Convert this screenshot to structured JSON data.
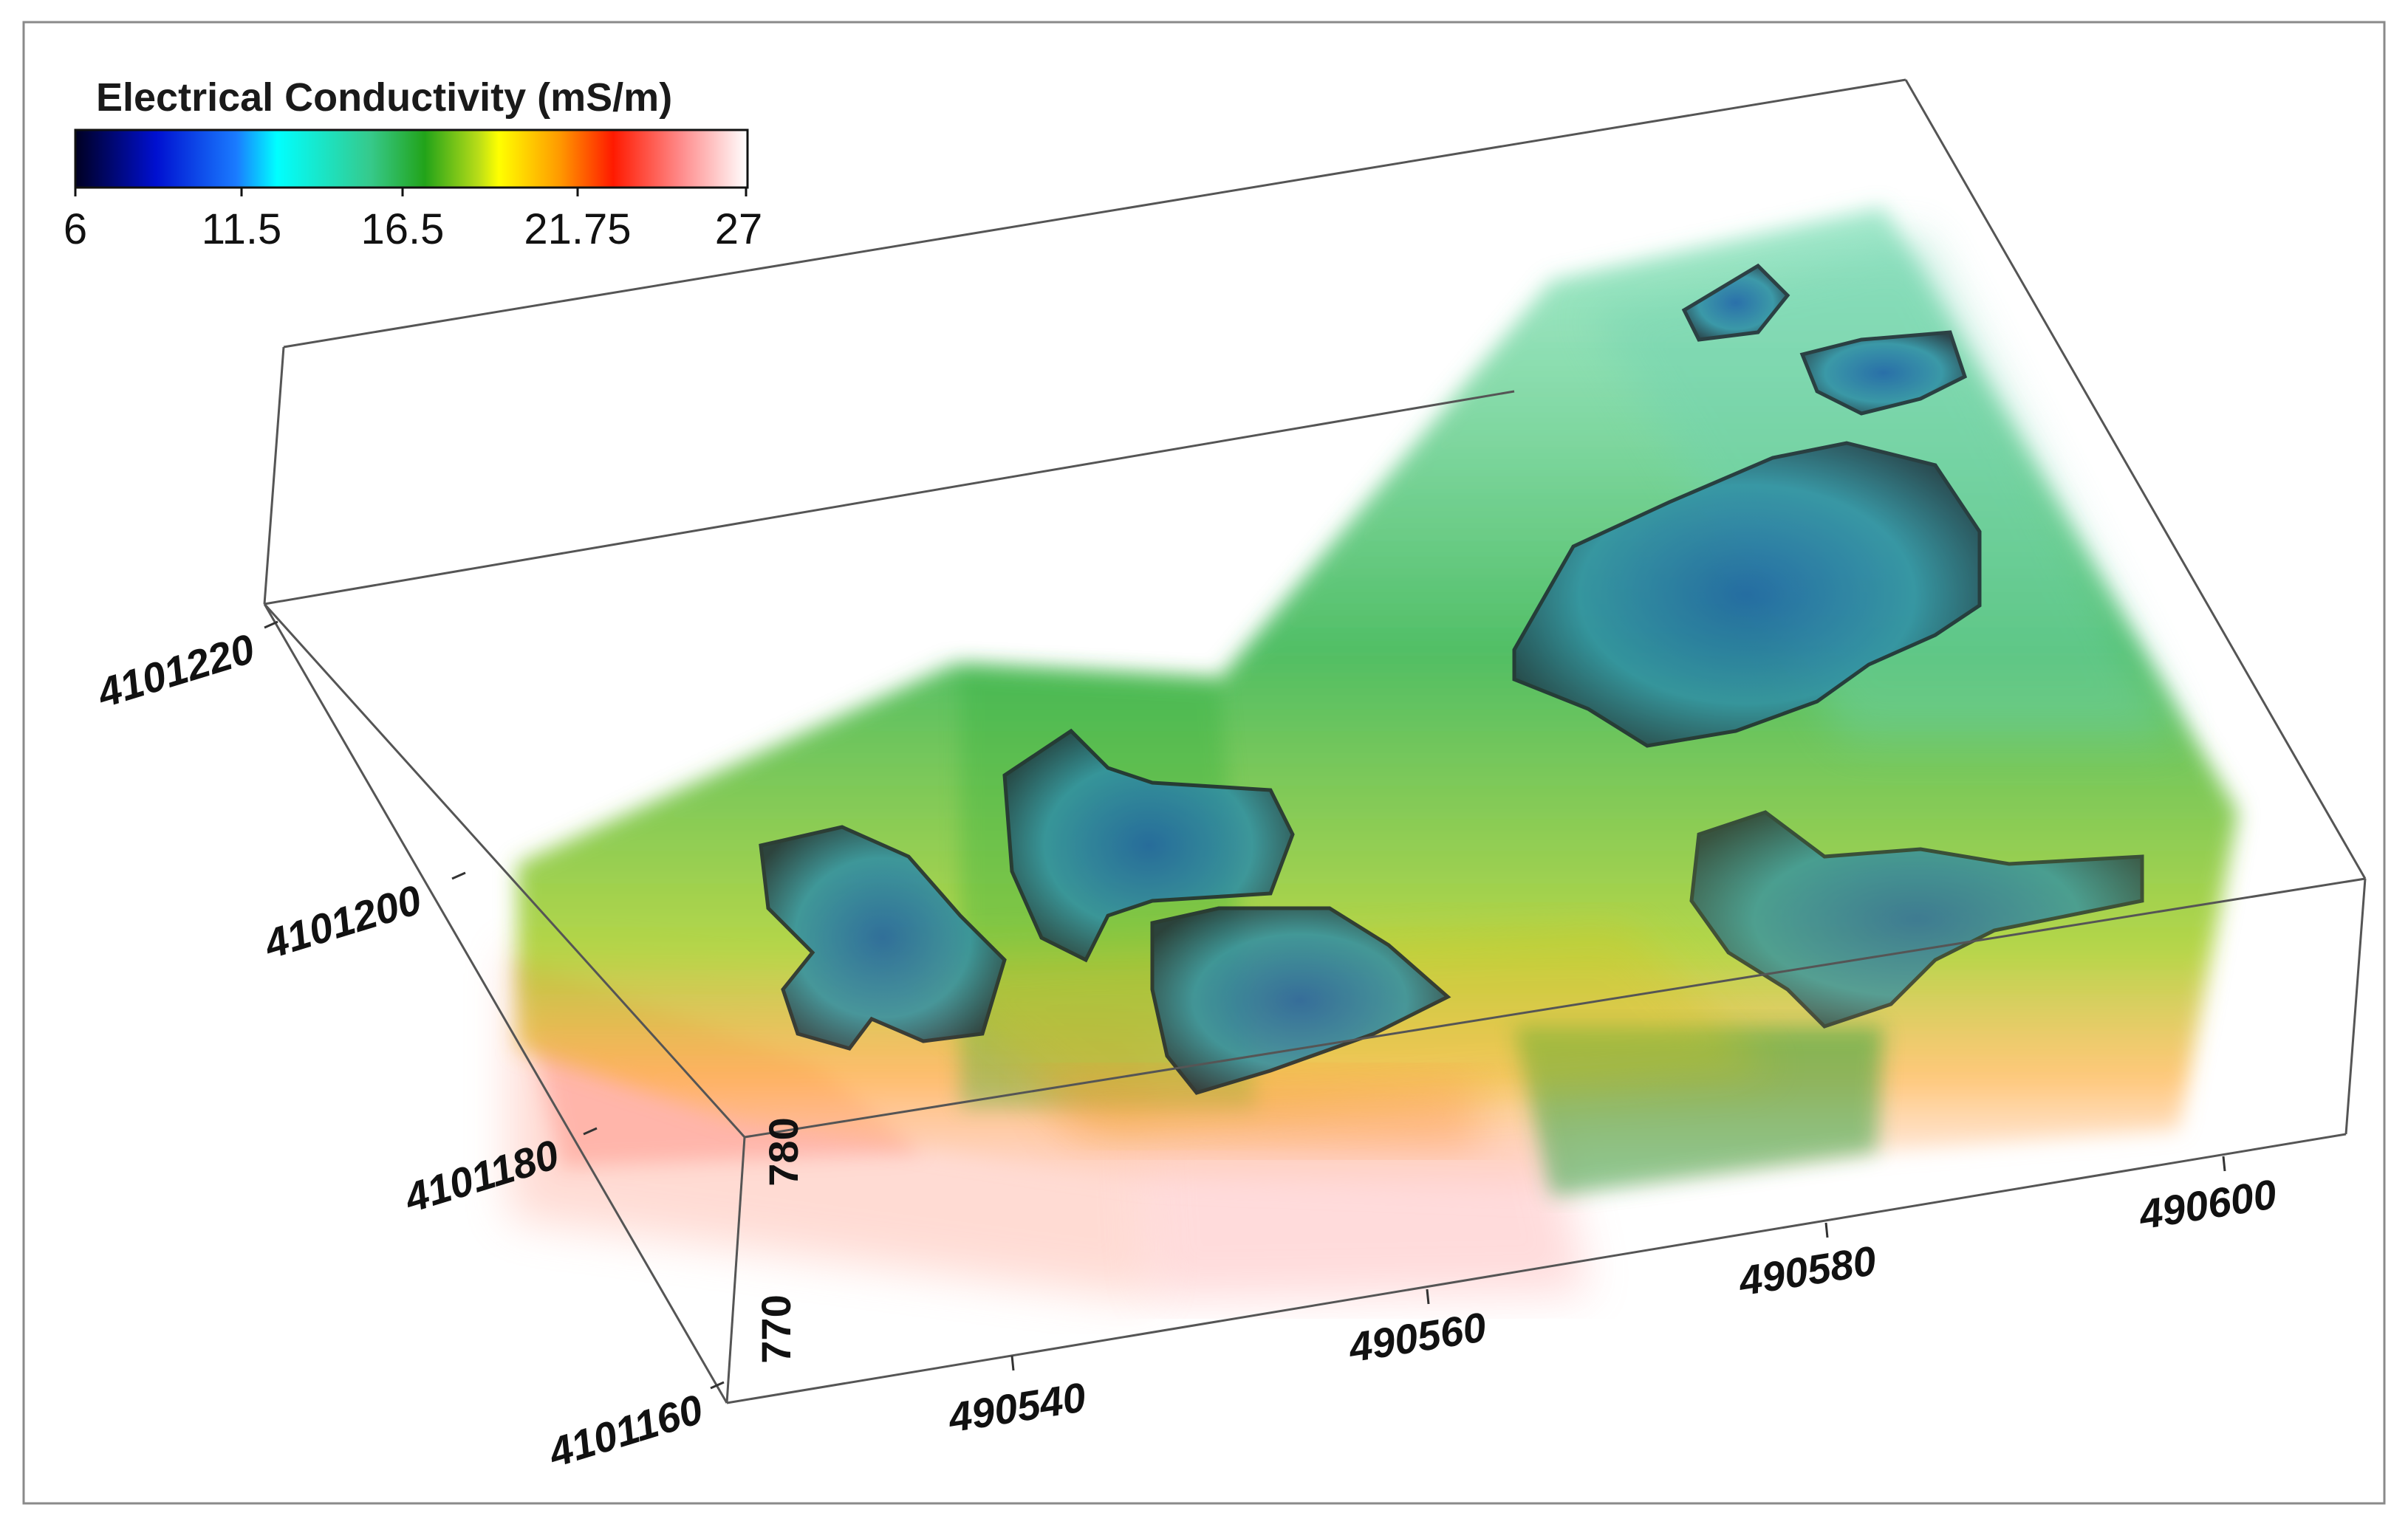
{
  "legend": {
    "title": "Electrical Conductivity (mS/m)",
    "ticks": [
      "6",
      "11.5",
      "16.5",
      "21.75",
      "27"
    ],
    "colors": [
      "#000033",
      "#0000ff",
      "#00ffff",
      "#00c853",
      "#3aa613",
      "#ffff00",
      "#ff9800",
      "#ff0000",
      "#ffffff"
    ]
  },
  "axes": {
    "y_ticks": [
      "4101220",
      "4101200",
      "4101180",
      "4101160"
    ],
    "x_ticks": [
      "490540",
      "490560",
      "490580",
      "490600"
    ],
    "z_ticks": [
      "780",
      "770"
    ]
  }
}
